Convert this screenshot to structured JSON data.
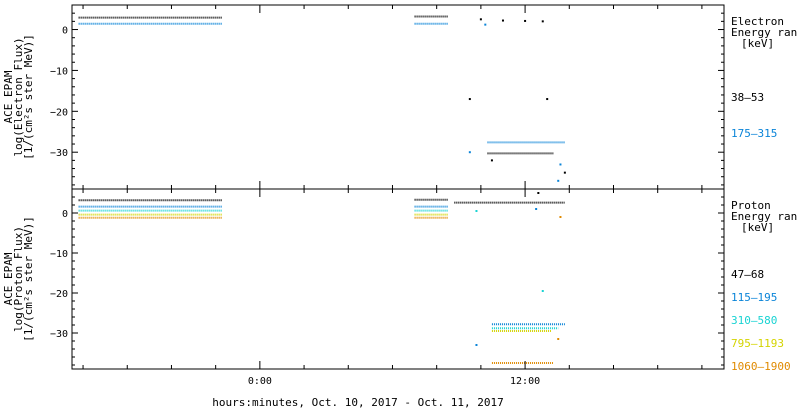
{
  "colors": {
    "series_1": "#000000",
    "series_2": "#0a84d8",
    "series_3": "#19d3d3",
    "series_4": "#d4d400",
    "series_5": "#e08a00",
    "axis": "#000000"
  },
  "chart_data": {
    "type": "scatter",
    "xlabel": "hours:minutes, Oct. 10, 2017 - Oct. 11, 2017",
    "x_tick_labels": [
      {
        "label": "0:00",
        "hour": 0
      },
      {
        "label": "12:00",
        "hour": 12
      }
    ],
    "x_range_hours": [
      -8.5,
      21
    ],
    "panels": [
      {
        "id": "electron",
        "ylabel_lines": [
          "ACE EPAM",
          "log(Electron Flux)",
          "[1/(cm²s ster MeV)]"
        ],
        "ylim": [
          -39,
          6
        ],
        "yticks": [
          0,
          -10,
          -20,
          -30
        ],
        "y_tick_labels": [
          "0",
          "−10",
          "−20",
          "−30"
        ],
        "legend_title": [
          "Electron",
          "Energy ran",
          "[keV]"
        ],
        "series": [
          {
            "name": "38–53",
            "color": "#000000",
            "segments": [
              {
                "x": [
                  -8.2,
                  -1.7
                ],
                "y": 2.9
              },
              {
                "x": [
                  7.0,
                  8.5
                ],
                "y": 3.2
              },
              {
                "x": [
                  10.3,
                  13.3
                ],
                "y": -30.3
              }
            ],
            "points": [
              [
                9.5,
                -17.0
              ],
              [
                10.0,
                2.5
              ],
              [
                11.0,
                2.2
              ],
              [
                12.0,
                2.1
              ],
              [
                12.8,
                2.0
              ],
              [
                13.0,
                -17.0
              ],
              [
                13.8,
                -35.0
              ],
              [
                10.5,
                -32.0
              ]
            ]
          },
          {
            "name": "175–315",
            "color": "#0a84d8",
            "segments": [
              {
                "x": [
                  -8.2,
                  -1.7
                ],
                "y": 1.4
              },
              {
                "x": [
                  7.0,
                  8.5
                ],
                "y": 1.4
              },
              {
                "x": [
                  10.3,
                  13.8
                ],
                "y": -27.6
              }
            ],
            "points": [
              [
                9.5,
                -30.0
              ],
              [
                13.5,
                -37.0
              ],
              [
                13.6,
                -33.0
              ],
              [
                10.2,
                1.2
              ]
            ]
          }
        ]
      },
      {
        "id": "proton",
        "ylabel_lines": [
          "ACE EPAM",
          "log(Proton Flux)",
          "[1/(cm²s ster MeV)]"
        ],
        "ylim": [
          -39,
          6
        ],
        "yticks": [
          0,
          -10,
          -20,
          -30
        ],
        "y_tick_labels": [
          "0",
          "−10",
          "−20",
          "−30"
        ],
        "legend_title": [
          "Proton",
          "Energy ran",
          "[keV]"
        ],
        "series": [
          {
            "name": "47–68",
            "color": "#000000",
            "segments": [
              {
                "x": [
                  -8.2,
                  -1.7
                ],
                "y": 3.2
              },
              {
                "x": [
                  7.0,
                  8.5
                ],
                "y": 3.3
              },
              {
                "x": [
                  8.8,
                  13.8
                ],
                "y": 2.6
              }
            ],
            "points": [
              [
                12.6,
                5.0
              ]
            ]
          },
          {
            "name": "115–195",
            "color": "#0a84d8",
            "segments": [
              {
                "x": [
                  -8.2,
                  -1.7
                ],
                "y": 1.6
              },
              {
                "x": [
                  7.0,
                  8.5
                ],
                "y": 1.6
              },
              {
                "x": [
                  10.5,
                  13.8
                ],
                "y": -27.8
              }
            ],
            "points": [
              [
                9.8,
                -33.0
              ],
              [
                12.5,
                1.0
              ]
            ]
          },
          {
            "name": "310–580",
            "color": "#19d3d3",
            "segments": [
              {
                "x": [
                  -8.2,
                  -1.7
                ],
                "y": 0.6
              },
              {
                "x": [
                  7.0,
                  8.5
                ],
                "y": 0.6
              },
              {
                "x": [
                  10.5,
                  13.5
                ],
                "y": -28.8
              }
            ],
            "points": [
              [
                12.8,
                -19.5
              ],
              [
                9.8,
                0.5
              ]
            ]
          },
          {
            "name": "795–1193",
            "color": "#d4d400",
            "segments": [
              {
                "x": [
                  -8.2,
                  -1.7
                ],
                "y": -0.4
              },
              {
                "x": [
                  7.0,
                  8.5
                ],
                "y": -0.4
              },
              {
                "x": [
                  10.5,
                  13.2
                ],
                "y": -29.5
              }
            ],
            "points": []
          },
          {
            "name": "1060–1900",
            "color": "#e08a00",
            "segments": [
              {
                "x": [
                  -8.2,
                  -1.7
                ],
                "y": -1.2
              },
              {
                "x": [
                  7.0,
                  8.5
                ],
                "y": -1.2
              },
              {
                "x": [
                  10.5,
                  13.3
                ],
                "y": -37.5
              }
            ],
            "points": [
              [
                13.5,
                -31.5
              ],
              [
                13.6,
                -1.0
              ]
            ]
          }
        ]
      }
    ]
  }
}
